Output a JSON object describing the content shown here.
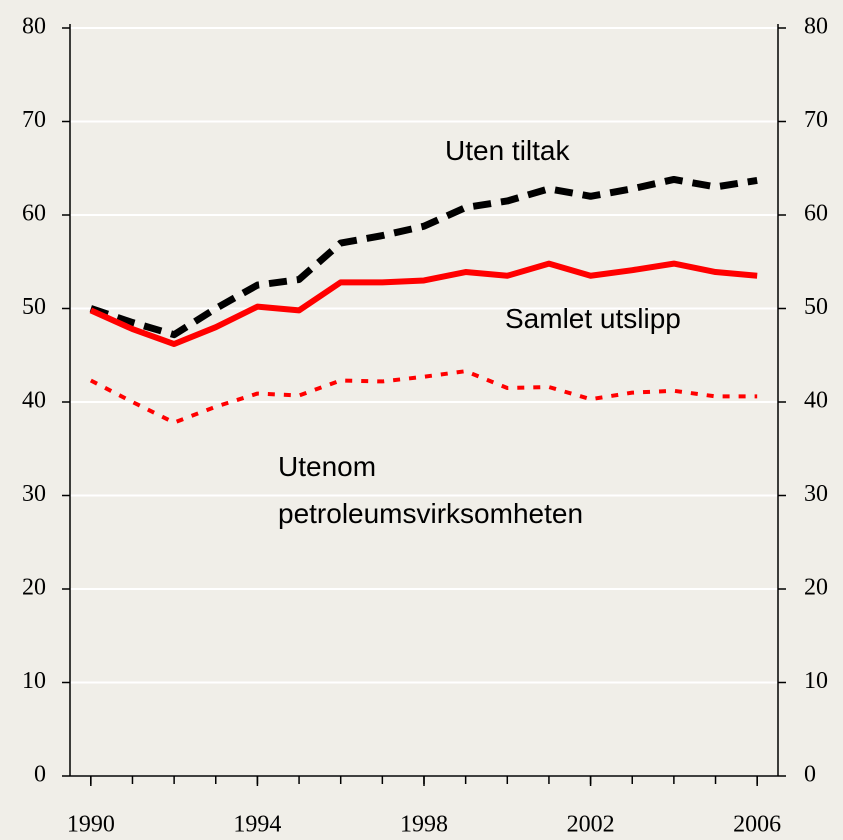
{
  "chart_data": {
    "type": "line",
    "x": [
      1990,
      1991,
      1992,
      1993,
      1994,
      1995,
      1996,
      1997,
      1998,
      1999,
      2000,
      2001,
      2002,
      2003,
      2004,
      2005,
      2006
    ],
    "xlim": [
      1989.5,
      2006.5
    ],
    "xticks": [
      1990,
      1994,
      1998,
      2002,
      2006
    ],
    "ylim": [
      0,
      80
    ],
    "yticks": [
      0,
      10,
      20,
      30,
      40,
      50,
      60,
      70,
      80
    ],
    "y2lim": [
      0,
      80
    ],
    "y2ticks": [
      0,
      10,
      20,
      30,
      40,
      50,
      60,
      70,
      80
    ],
    "grid": true,
    "series": [
      {
        "name": "Uten tiltak",
        "color": "#000000",
        "dash": "dashed",
        "values": [
          50.0,
          48.5,
          47.2,
          50.0,
          52.5,
          53.1,
          57.0,
          57.8,
          58.8,
          60.8,
          61.5,
          62.8,
          62.0,
          62.8,
          63.8,
          63.0,
          63.7
        ]
      },
      {
        "name": "Samlet utslipp",
        "color": "#ff0000",
        "dash": "solid",
        "values": [
          49.8,
          47.8,
          46.2,
          48.0,
          50.2,
          49.8,
          52.8,
          52.8,
          53.0,
          53.9,
          53.5,
          54.8,
          53.5,
          54.1,
          54.8,
          53.9,
          53.5
        ]
      },
      {
        "name": "Utenom petroleumsvirksomheten",
        "color": "#ff0000",
        "dash": "dotted",
        "values": [
          42.3,
          40.0,
          37.8,
          39.5,
          40.9,
          40.7,
          42.3,
          42.2,
          42.7,
          43.3,
          41.5,
          41.6,
          40.3,
          41.0,
          41.2,
          40.6,
          40.6
        ]
      }
    ],
    "annotations": [
      "Uten tiltak",
      "Samlet utslipp",
      "Utenom",
      "petroleumsvirksomheten"
    ]
  }
}
